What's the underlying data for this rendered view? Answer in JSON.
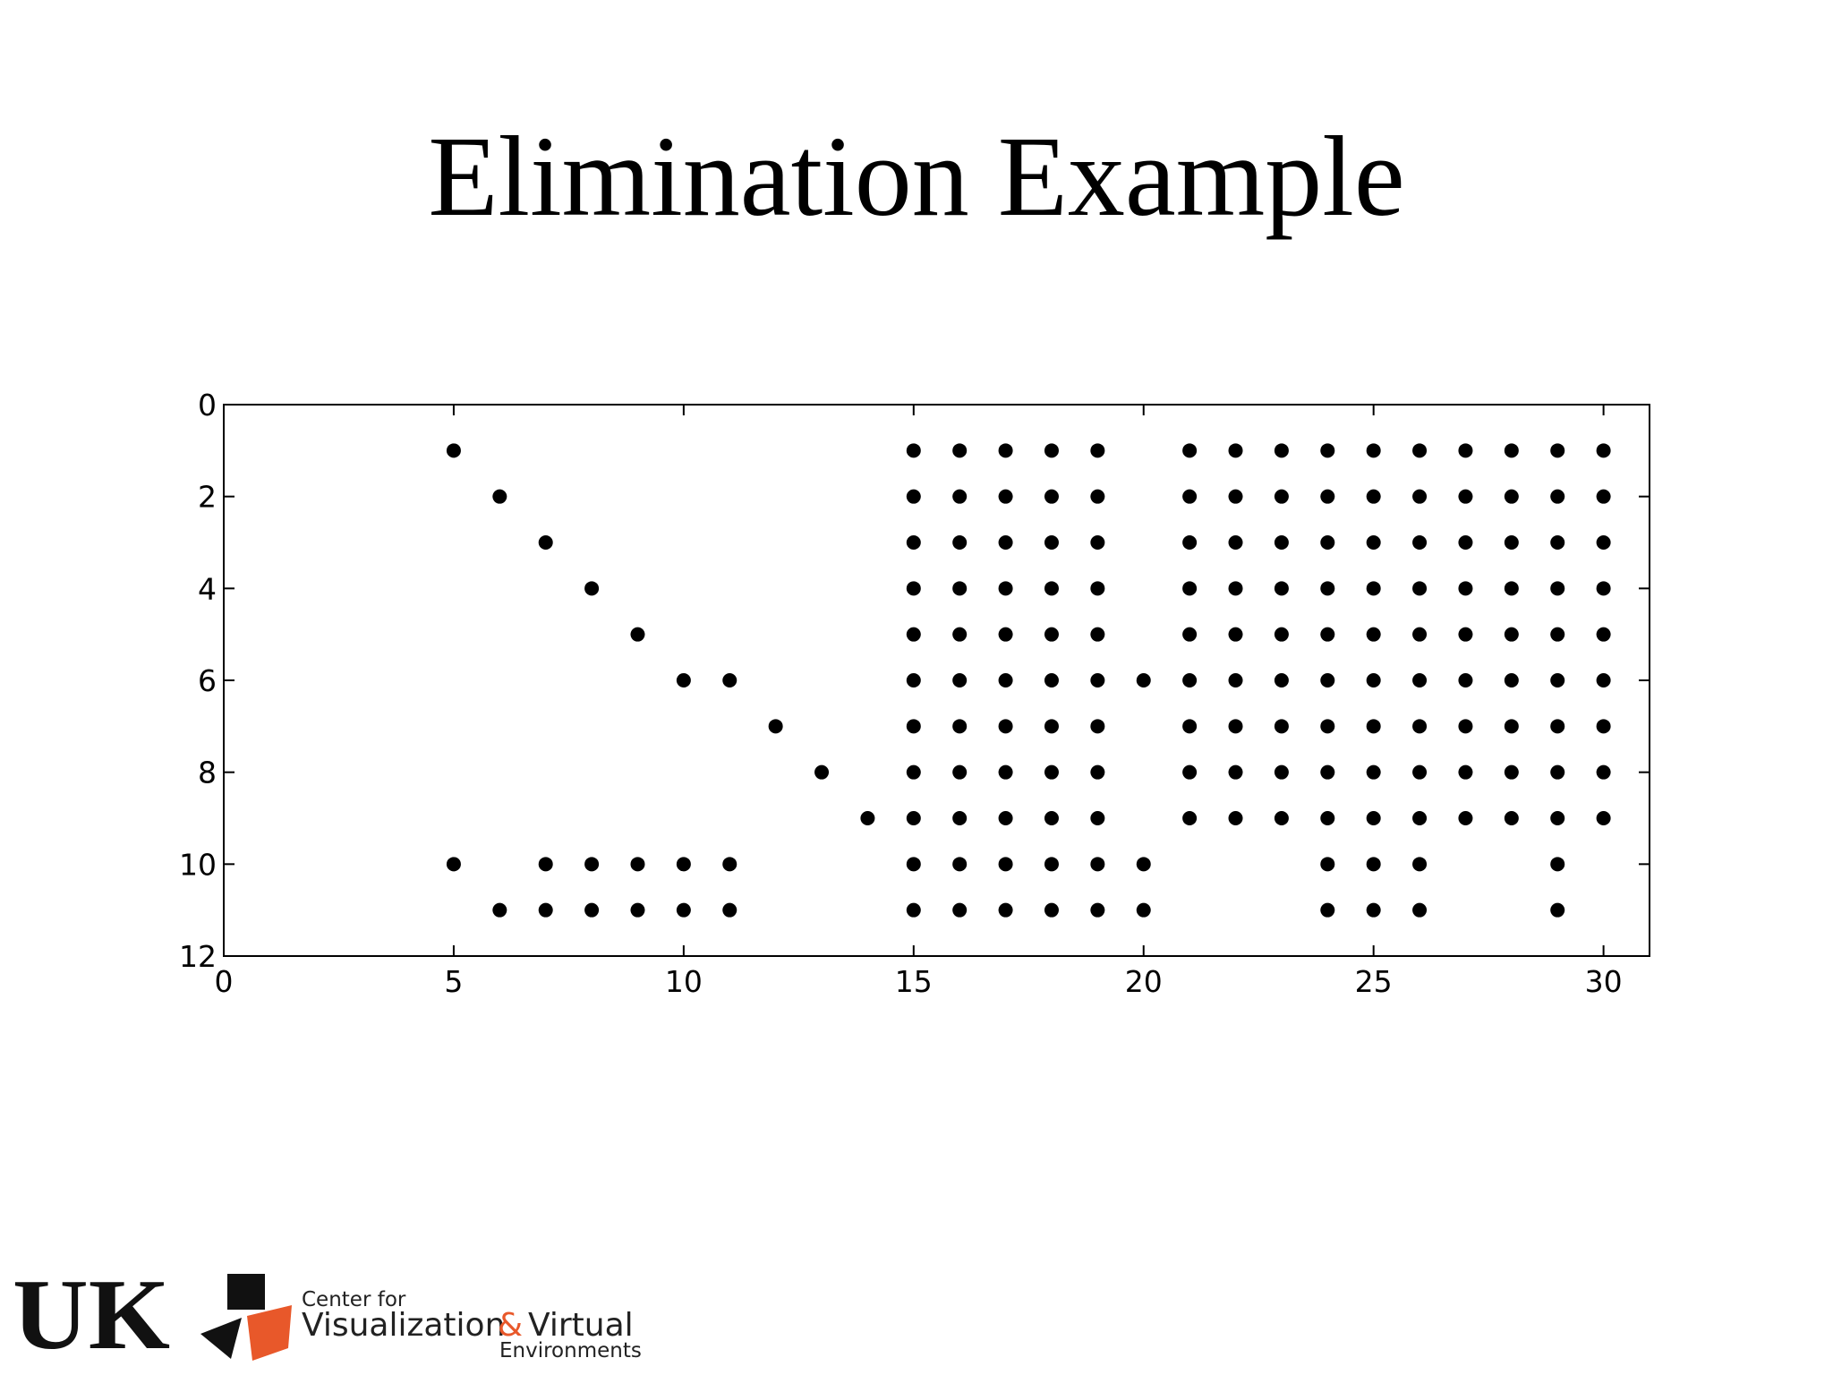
{
  "chart_data": {
    "type": "scatter",
    "title": "Elimination Example",
    "color": "#000000",
    "xlim": [
      0,
      31
    ],
    "ylim": [
      0,
      12
    ],
    "y_inverted": true,
    "xticks": [
      0,
      5,
      10,
      15,
      20,
      25,
      30
    ],
    "yticks": [
      0,
      2,
      4,
      6,
      8,
      10,
      12
    ],
    "x": [
      5,
      15,
      16,
      17,
      18,
      19,
      21,
      22,
      23,
      24,
      25,
      26,
      27,
      28,
      29,
      30,
      6,
      15,
      16,
      17,
      18,
      19,
      21,
      22,
      23,
      24,
      25,
      26,
      27,
      28,
      29,
      30,
      7,
      15,
      16,
      17,
      18,
      19,
      21,
      22,
      23,
      24,
      25,
      26,
      27,
      28,
      29,
      30,
      8,
      15,
      16,
      17,
      18,
      19,
      21,
      22,
      23,
      24,
      25,
      26,
      27,
      28,
      29,
      30,
      9,
      15,
      16,
      17,
      18,
      19,
      21,
      22,
      23,
      24,
      25,
      26,
      27,
      28,
      29,
      30,
      10,
      11,
      15,
      16,
      17,
      18,
      19,
      20,
      21,
      22,
      23,
      24,
      25,
      26,
      27,
      28,
      29,
      30,
      12,
      15,
      16,
      17,
      18,
      19,
      21,
      22,
      23,
      24,
      25,
      26,
      27,
      28,
      29,
      30,
      13,
      15,
      16,
      17,
      18,
      19,
      21,
      22,
      23,
      24,
      25,
      26,
      27,
      28,
      29,
      30,
      14,
      15,
      16,
      17,
      18,
      19,
      21,
      22,
      23,
      24,
      25,
      26,
      27,
      28,
      29,
      30,
      5,
      7,
      8,
      9,
      10,
      11,
      15,
      16,
      17,
      18,
      19,
      20,
      24,
      25,
      26,
      29,
      6,
      7,
      8,
      9,
      10,
      11,
      15,
      16,
      17,
      18,
      19,
      20,
      24,
      25,
      26,
      29
    ],
    "values": [
      1,
      1,
      1,
      1,
      1,
      1,
      1,
      1,
      1,
      1,
      1,
      1,
      1,
      1,
      1,
      1,
      2,
      2,
      2,
      2,
      2,
      2,
      2,
      2,
      2,
      2,
      2,
      2,
      2,
      2,
      2,
      2,
      3,
      3,
      3,
      3,
      3,
      3,
      3,
      3,
      3,
      3,
      3,
      3,
      3,
      3,
      3,
      3,
      4,
      4,
      4,
      4,
      4,
      4,
      4,
      4,
      4,
      4,
      4,
      4,
      4,
      4,
      4,
      4,
      5,
      5,
      5,
      5,
      5,
      5,
      5,
      5,
      5,
      5,
      5,
      5,
      5,
      5,
      5,
      5,
      6,
      6,
      6,
      6,
      6,
      6,
      6,
      6,
      6,
      6,
      6,
      6,
      6,
      6,
      6,
      6,
      6,
      6,
      7,
      7,
      7,
      7,
      7,
      7,
      7,
      7,
      7,
      7,
      7,
      7,
      7,
      7,
      7,
      7,
      8,
      8,
      8,
      8,
      8,
      8,
      8,
      8,
      8,
      8,
      8,
      8,
      8,
      8,
      8,
      8,
      9,
      9,
      9,
      9,
      9,
      9,
      9,
      9,
      9,
      9,
      9,
      9,
      9,
      9,
      9,
      9,
      10,
      10,
      10,
      10,
      10,
      10,
      10,
      10,
      10,
      10,
      10,
      10,
      10,
      10,
      10,
      10,
      11,
      11,
      11,
      11,
      11,
      11,
      11,
      11,
      11,
      11,
      11,
      11,
      11,
      11,
      11,
      11
    ]
  },
  "logo": {
    "university": "UK",
    "line1": "Center for",
    "line2a": "Visualization",
    "amp": "&",
    "line2b": "Virtual",
    "line3": "Environments"
  }
}
